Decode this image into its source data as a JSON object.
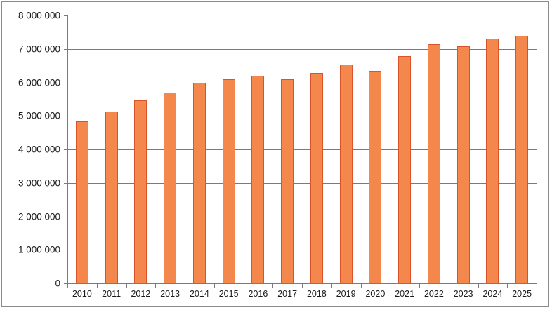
{
  "chart_data": {
    "type": "bar",
    "title": "",
    "xlabel": "",
    "ylabel": "",
    "ylim": [
      0,
      8000000
    ],
    "grid": true,
    "legend": null,
    "categories": [
      "2010",
      "2011",
      "2012",
      "2013",
      "2014",
      "2015",
      "2016",
      "2017",
      "2018",
      "2019",
      "2020",
      "2021",
      "2022",
      "2023",
      "2024",
      "2025"
    ],
    "values": [
      4830000,
      5140000,
      5470000,
      5690000,
      6000000,
      6100000,
      6200000,
      6100000,
      6290000,
      6540000,
      6350000,
      6790000,
      7140000,
      7070000,
      7300000,
      7400000
    ],
    "yticks": [
      0,
      1000000,
      2000000,
      3000000,
      4000000,
      5000000,
      6000000,
      7000000,
      8000000
    ],
    "ytick_labels": [
      "0",
      "1 000 000",
      "2 000 000",
      "3 000 000",
      "4 000 000",
      "5 000 000",
      "6 000 000",
      "7 000 000",
      "8 000 000"
    ],
    "colors": {
      "bar_fill": "#f4874b",
      "bar_border": "#d9542b",
      "grid": "#7a7a7a"
    }
  }
}
